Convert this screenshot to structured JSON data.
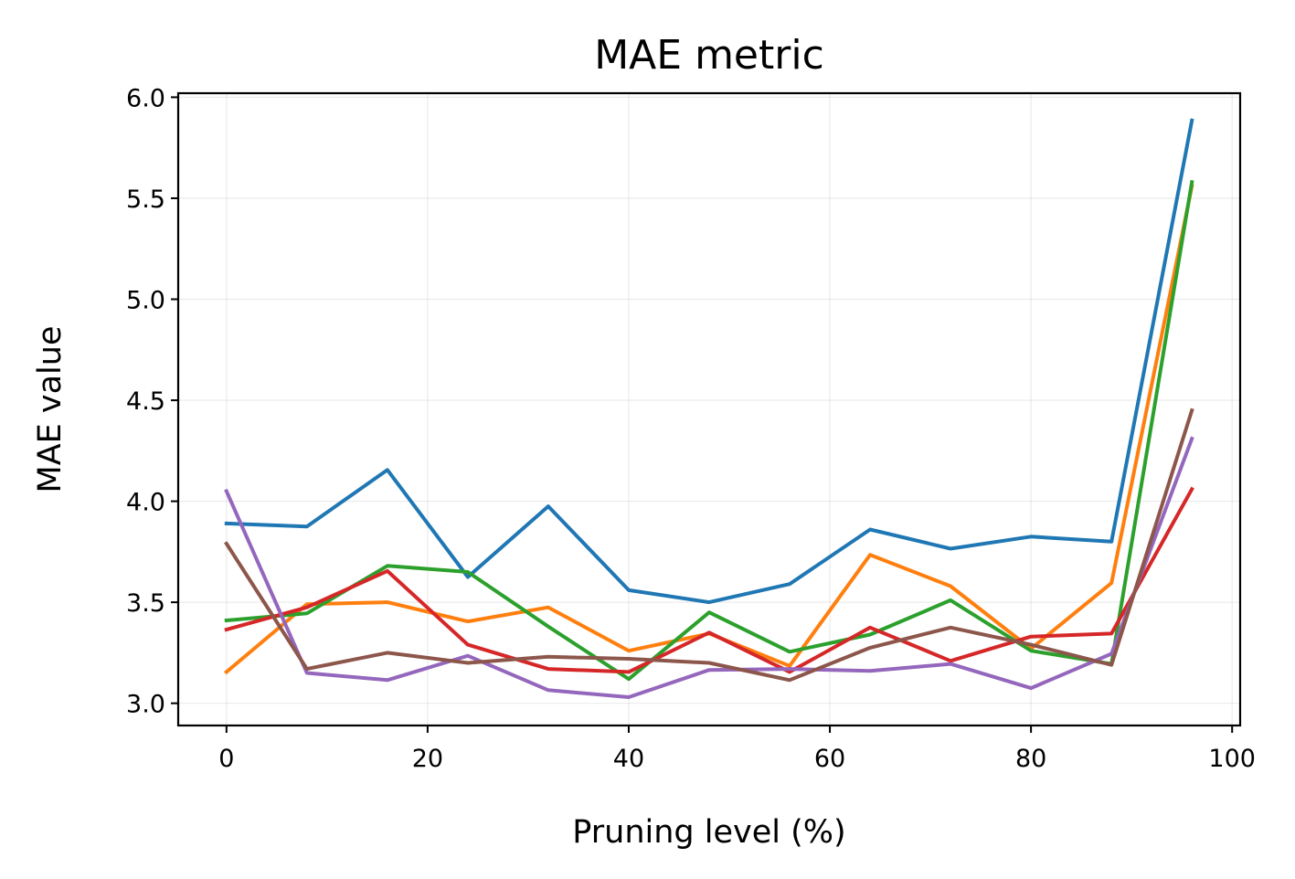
{
  "chart_data": {
    "type": "line",
    "title": "MAE metric",
    "xlabel": "Pruning level (%)",
    "ylabel": "MAE value",
    "xlim": [
      -4.8,
      100.8
    ],
    "ylim": [
      2.89,
      6.02
    ],
    "xticks": [
      "0",
      "20",
      "40",
      "60",
      "80",
      "100"
    ],
    "xtick_values": [
      0,
      20,
      40,
      60,
      80,
      100
    ],
    "yticks": [
      "3.0",
      "3.5",
      "4.0",
      "4.5",
      "5.0",
      "5.5",
      "6.0"
    ],
    "ytick_values": [
      3.0,
      3.5,
      4.0,
      4.5,
      5.0,
      5.5,
      6.0
    ],
    "grid": true,
    "legend": "none",
    "x": [
      0,
      8,
      16,
      24,
      32,
      40,
      48,
      56,
      64,
      72,
      80,
      88,
      96
    ],
    "series": [
      {
        "color": "#1f77b4",
        "values": [
          3.89,
          3.875,
          4.155,
          3.625,
          3.975,
          3.56,
          3.5,
          3.59,
          3.86,
          3.765,
          3.825,
          3.8,
          5.885
        ]
      },
      {
        "color": "#ff7f0e",
        "values": [
          3.155,
          3.49,
          3.5,
          3.405,
          3.475,
          3.26,
          3.345,
          3.185,
          3.735,
          3.58,
          3.27,
          3.595,
          5.56
        ]
      },
      {
        "color": "#2ca02c",
        "values": [
          3.41,
          3.445,
          3.68,
          3.65,
          3.38,
          3.12,
          3.45,
          3.255,
          3.34,
          3.51,
          3.26,
          3.195,
          5.58
        ]
      },
      {
        "color": "#d62728",
        "values": [
          3.365,
          3.475,
          3.655,
          3.29,
          3.17,
          3.155,
          3.35,
          3.155,
          3.375,
          3.21,
          3.33,
          3.345,
          4.06
        ]
      },
      {
        "color": "#9467bd",
        "values": [
          4.05,
          3.15,
          3.115,
          3.235,
          3.065,
          3.03,
          3.165,
          3.17,
          3.16,
          3.195,
          3.075,
          3.245,
          4.31
        ]
      },
      {
        "color": "#8c564b",
        "values": [
          3.79,
          3.17,
          3.25,
          3.2,
          3.23,
          3.22,
          3.2,
          3.115,
          3.275,
          3.375,
          3.29,
          3.19,
          4.45
        ]
      }
    ]
  }
}
